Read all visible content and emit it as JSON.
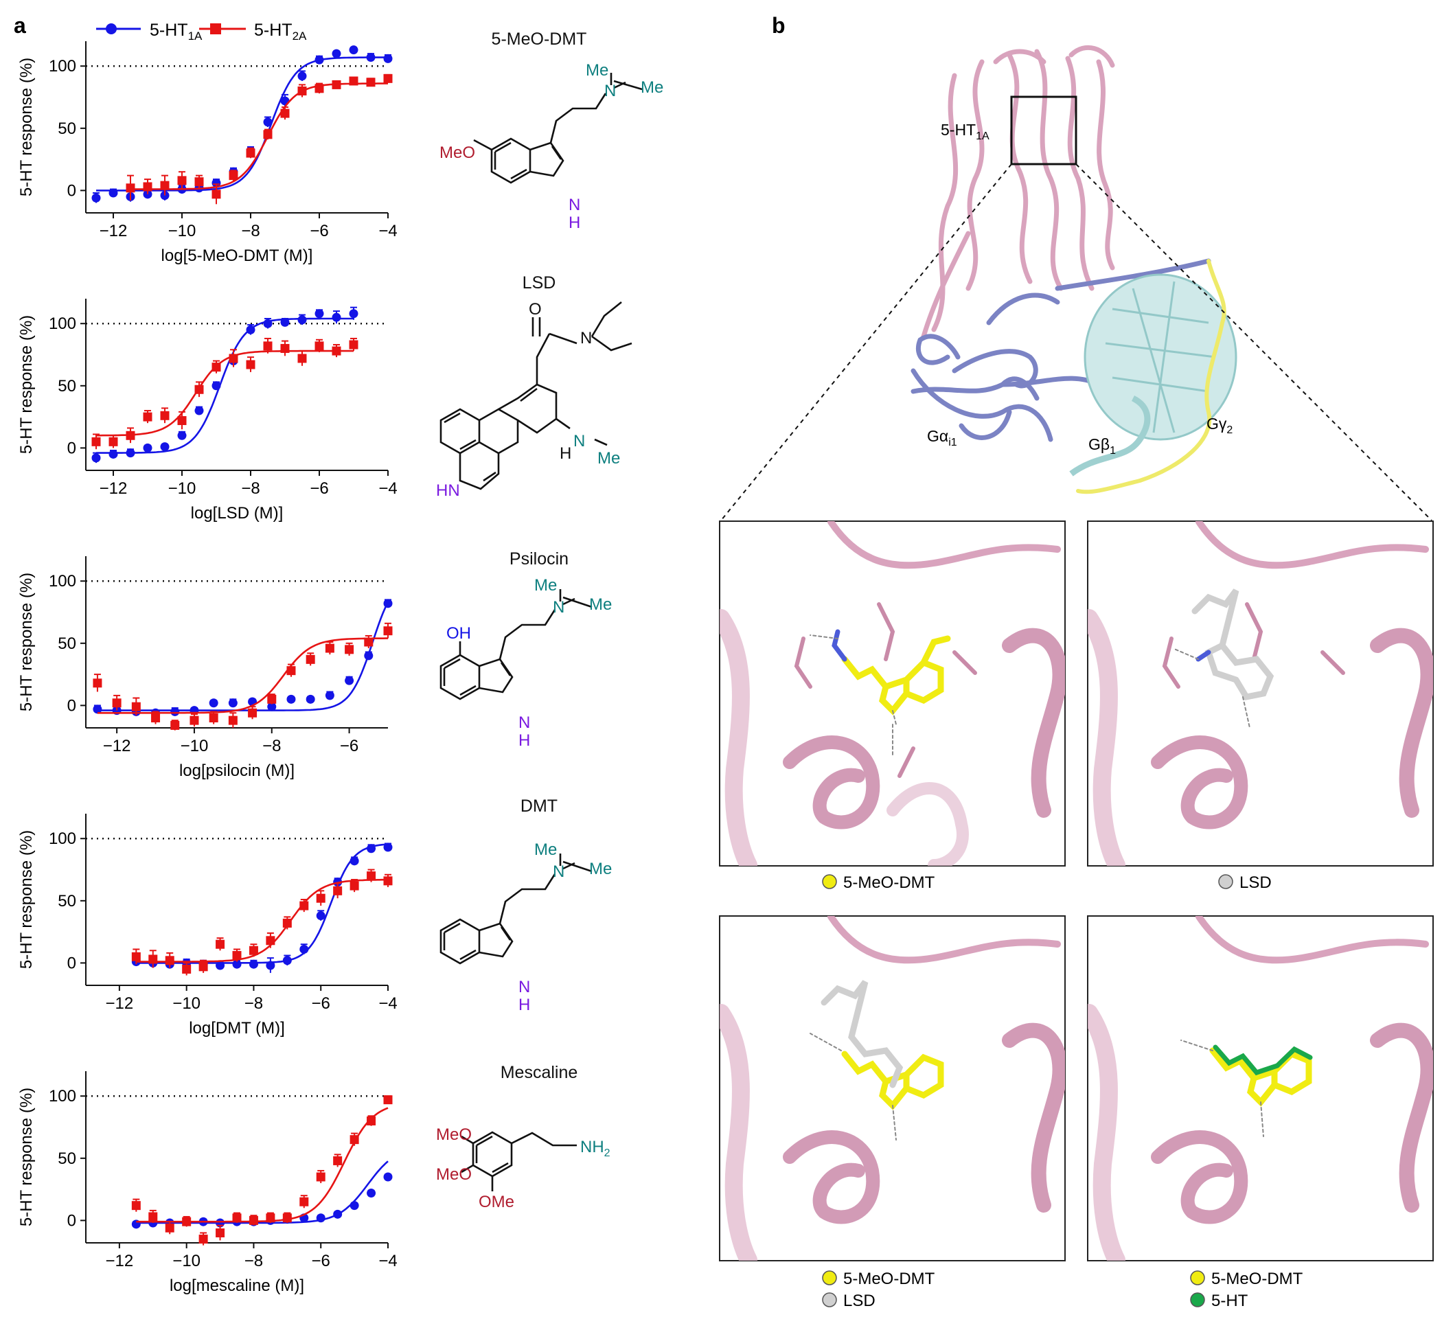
{
  "panel_labels": {
    "a": "a",
    "b": "b"
  },
  "legend": {
    "receptors": [
      {
        "name": "5-HT",
        "sub": "1A",
        "color": "#1414e6",
        "marker": "circle"
      },
      {
        "name": "5-HT",
        "sub": "2A",
        "color": "#e61414",
        "marker": "square"
      }
    ]
  },
  "chart_data": [
    {
      "type": "scatter",
      "ylabel": "5-HT response (%)",
      "xlabel": "log[5-MeO-DMT (M)]",
      "xlim": [
        -12.8,
        -4
      ],
      "ylim": [
        -18,
        120
      ],
      "xticks": [
        -12,
        -10,
        -8,
        -6,
        -4
      ],
      "yticks": [
        0,
        50,
        100
      ],
      "xtick_labels": [
        "−12",
        "−10",
        "−8",
        "−6",
        "−4"
      ],
      "ytick_labels": [
        "0",
        "50",
        "100"
      ],
      "reference_line": 100,
      "series": [
        {
          "x": [
            -12.5,
            -12,
            -11.5,
            -11,
            -10.5,
            -10,
            -9.5,
            -9,
            -8.5,
            -8,
            -7.5,
            -7,
            -6.5,
            -6,
            -5.5,
            -5,
            -4.5,
            -4
          ],
          "y": [
            -6,
            -2,
            -5,
            -3,
            -4,
            1,
            2,
            6,
            15,
            32,
            55,
            72,
            92,
            105,
            110,
            113,
            107,
            106
          ],
          "err": [
            4,
            3,
            4,
            3,
            4,
            3,
            3,
            3,
            3,
            3,
            4,
            5,
            4,
            3,
            2,
            2,
            3,
            3
          ],
          "fit": {
            "bottom": 0,
            "top": 107,
            "ec50": -7.4,
            "hill": 1.2
          }
        },
        {
          "x": [
            -11.5,
            -11,
            -10.5,
            -10,
            -9.5,
            -9,
            -8.5,
            -8,
            -7.5,
            -7,
            -6.5,
            -6,
            -5.5,
            -5,
            -4.5,
            -4
          ],
          "y": [
            2,
            3,
            4,
            8,
            7,
            -3,
            12,
            30,
            45,
            62,
            80,
            82,
            85,
            88,
            87,
            90
          ],
          "err": [
            10,
            6,
            8,
            7,
            5,
            8,
            4,
            4,
            4,
            5,
            5,
            4,
            3,
            3,
            3,
            3
          ],
          "fit": {
            "bottom": 1,
            "top": 86,
            "ec50": -7.5,
            "hill": 1.1
          }
        }
      ]
    },
    {
      "type": "scatter",
      "ylabel": "5-HT response (%)",
      "xlabel": "log[LSD (M)]",
      "xlim": [
        -12.8,
        -4
      ],
      "ylim": [
        -18,
        120
      ],
      "xticks": [
        -12,
        -10,
        -8,
        -6,
        -4
      ],
      "yticks": [
        0,
        50,
        100
      ],
      "xtick_labels": [
        "−12",
        "−10",
        "−8",
        "−6",
        "−4"
      ],
      "ytick_labels": [
        "0",
        "50",
        "100"
      ],
      "reference_line": 100,
      "series": [
        {
          "x": [
            -12.5,
            -12,
            -11.5,
            -11,
            -10.5,
            -10,
            -9.5,
            -9,
            -8.5,
            -8,
            -7.5,
            -7,
            -6.5,
            -6,
            -5.5,
            -5
          ],
          "y": [
            -8,
            -5,
            -4,
            0,
            1,
            10,
            30,
            50,
            70,
            95,
            100,
            101,
            103,
            108,
            105,
            108
          ],
          "err": [
            4,
            3,
            3,
            2,
            2,
            3,
            3,
            3,
            4,
            4,
            4,
            3,
            4,
            3,
            5,
            5
          ],
          "fit": {
            "bottom": -4,
            "top": 104,
            "ec50": -8.9,
            "hill": 1.2
          }
        },
        {
          "x": [
            -12.5,
            -12,
            -11.5,
            -11,
            -10.5,
            -10,
            -9.5,
            -9,
            -8.5,
            -8,
            -7.5,
            -7,
            -6.5,
            -6,
            -5.5,
            -5
          ],
          "y": [
            5,
            5,
            10,
            25,
            26,
            22,
            47,
            65,
            72,
            67,
            82,
            80,
            72,
            82,
            78,
            83
          ],
          "err": [
            6,
            5,
            6,
            5,
            6,
            7,
            6,
            5,
            7,
            6,
            6,
            6,
            6,
            5,
            5,
            5
          ],
          "fit": {
            "bottom": 10,
            "top": 78,
            "ec50": -9.6,
            "hill": 1.1
          }
        }
      ]
    },
    {
      "type": "scatter",
      "ylabel": "5-HT response (%)",
      "xlabel": "log[psilocin (M)]",
      "xlim": [
        -12.8,
        -5
      ],
      "ylim": [
        -18,
        120
      ],
      "xticks": [
        -12,
        -10,
        -8,
        -6
      ],
      "yticks": [
        0,
        50,
        100
      ],
      "xtick_labels": [
        "−12",
        "−10",
        "−8",
        "−6"
      ],
      "ytick_labels": [
        "0",
        "50",
        "100"
      ],
      "reference_line": 100,
      "series": [
        {
          "x": [
            -12.5,
            -12,
            -11.5,
            -11,
            -10.5,
            -10,
            -9.5,
            -9,
            -8.5,
            -8,
            -7.5,
            -7,
            -6.5,
            -6,
            -5.5,
            -5
          ],
          "y": [
            -3,
            -4,
            -5,
            -6,
            -5,
            -4,
            2,
            2,
            3,
            -1,
            5,
            5,
            8,
            20,
            40,
            82
          ],
          "err": [
            3,
            2,
            3,
            2,
            3,
            2,
            2,
            3,
            2,
            2,
            2,
            2,
            3,
            3,
            3,
            3
          ],
          "fit": {
            "bottom": -4,
            "top": 105,
            "ec50": -5.4,
            "hill": 1.5
          }
        },
        {
          "x": [
            -12.5,
            -12,
            -11.5,
            -11,
            -10.5,
            -10,
            -9.5,
            -9,
            -8.5,
            -8,
            -7.5,
            -7,
            -6.5,
            -6,
            -5.5,
            -5
          ],
          "y": [
            18,
            2,
            -1,
            -10,
            -16,
            -12,
            -10,
            -12,
            -6,
            5,
            28,
            37,
            46,
            45,
            51,
            60
          ],
          "err": [
            7,
            6,
            7,
            5,
            4,
            5,
            5,
            6,
            5,
            4,
            5,
            5,
            5,
            5,
            5,
            6
          ],
          "fit": {
            "bottom": -6,
            "top": 54,
            "ec50": -7.7,
            "hill": 1.2
          }
        }
      ]
    },
    {
      "type": "scatter",
      "ylabel": "5-HT response (%)",
      "xlabel": "log[DMT (M)]",
      "xlim": [
        -13,
        -4
      ],
      "ylim": [
        -18,
        120
      ],
      "xticks": [
        -12,
        -10,
        -8,
        -6,
        -4
      ],
      "yticks": [
        0,
        50,
        100
      ],
      "xtick_labels": [
        "−12",
        "−10",
        "−8",
        "−6",
        "−4"
      ],
      "ytick_labels": [
        "0",
        "50",
        "100"
      ],
      "reference_line": 100,
      "series": [
        {
          "x": [
            -11.5,
            -11,
            -10.5,
            -10,
            -9.5,
            -9,
            -8.5,
            -8,
            -7.5,
            -7,
            -6.5,
            -6,
            -5.5,
            -5,
            -4.5,
            -4
          ],
          "y": [
            1,
            0,
            -1,
            0,
            -1,
            -2,
            -1,
            -1,
            -2,
            2,
            11,
            38,
            65,
            82,
            92,
            93
          ],
          "err": [
            3,
            3,
            3,
            3,
            3,
            3,
            3,
            3,
            6,
            4,
            4,
            4,
            3,
            3,
            3,
            3
          ],
          "fit": {
            "bottom": 0,
            "top": 96,
            "ec50": -5.7,
            "hill": 1.3
          }
        },
        {
          "x": [
            -11.5,
            -11,
            -10.5,
            -10,
            -9.5,
            -9,
            -8.5,
            -8,
            -7.5,
            -7,
            -6.5,
            -6,
            -5.5,
            -5,
            -4.5,
            -4
          ],
          "y": [
            5,
            3,
            2,
            -5,
            -3,
            15,
            6,
            10,
            18,
            32,
            46,
            52,
            58,
            62,
            70,
            66
          ],
          "err": [
            6,
            7,
            6,
            5,
            5,
            5,
            5,
            5,
            6,
            5,
            5,
            6,
            6,
            5,
            5,
            5
          ],
          "fit": {
            "bottom": 1,
            "top": 67,
            "ec50": -6.9,
            "hill": 1.0
          }
        }
      ]
    },
    {
      "type": "scatter",
      "ylabel": "5-HT response (%)",
      "xlabel": "log[mescaline (M)]",
      "xlim": [
        -13,
        -4
      ],
      "ylim": [
        -18,
        120
      ],
      "xticks": [
        -12,
        -10,
        -8,
        -6,
        -4
      ],
      "yticks": [
        0,
        50,
        100
      ],
      "xtick_labels": [
        "−12",
        "−10",
        "−8",
        "−6",
        "−4"
      ],
      "ytick_labels": [
        "0",
        "50",
        "100"
      ],
      "reference_line": 100,
      "series": [
        {
          "x": [
            -11.5,
            -11,
            -10.5,
            -10,
            -9.5,
            -9,
            -8.5,
            -8,
            -7.5,
            -7,
            -6.5,
            -6,
            -5.5,
            -5,
            -4.5,
            -4
          ],
          "y": [
            -3,
            -2,
            -2,
            -1,
            -1,
            -2,
            -1,
            -1,
            0,
            1,
            2,
            2,
            5,
            12,
            22,
            35
          ],
          "err": [
            2,
            2,
            2,
            2,
            2,
            2,
            2,
            2,
            2,
            2,
            2,
            2,
            2,
            2,
            2,
            2
          ],
          "fit": {
            "bottom": -2,
            "top": 60,
            "ec50": -4.6,
            "hill": 1.0
          }
        },
        {
          "x": [
            -11.5,
            -11,
            -10.5,
            -10,
            -9.5,
            -9,
            -8.5,
            -8,
            -7.5,
            -7,
            -6.5,
            -6,
            -5.5,
            -5,
            -4.5,
            -4
          ],
          "y": [
            12,
            3,
            -6,
            -1,
            -15,
            -10,
            2,
            0,
            2,
            2,
            15,
            35,
            48,
            65,
            80,
            97
          ],
          "err": [
            5,
            5,
            5,
            4,
            5,
            6,
            4,
            4,
            4,
            4,
            5,
            5,
            5,
            5,
            4,
            3
          ],
          "fit": {
            "bottom": -1,
            "top": 95,
            "ec50": -5.3,
            "hill": 1.0
          }
        }
      ]
    }
  ],
  "compounds": [
    {
      "name": "5-MeO-DMT",
      "labels": {
        "meo": "MeO",
        "me1": "Me",
        "n": "N",
        "me2": "Me",
        "nh_n": "N",
        "nh_h": "H"
      }
    },
    {
      "name": "LSD",
      "labels": {
        "o": "O",
        "n_amide": "N",
        "n_me": "N",
        "me": "Me",
        "h": "H",
        "hn": "HN"
      }
    },
    {
      "name": "Psilocin",
      "labels": {
        "oh": "OH",
        "me1": "Me",
        "n": "N",
        "me2": "Me",
        "nh_n": "N",
        "nh_h": "H"
      }
    },
    {
      "name": "DMT",
      "labels": {
        "me1": "Me",
        "n": "N",
        "me2": "Me",
        "nh_n": "N",
        "nh_h": "H"
      }
    },
    {
      "name": "Mescaline",
      "labels": {
        "meo1": "MeO",
        "meo2": "MeO",
        "ome": "OMe",
        "nh2": "NH",
        "nh2_sub": "2"
      }
    }
  ],
  "structure": {
    "receptor_label": {
      "text": "5-HT",
      "sub": "1A"
    },
    "g_alpha": {
      "text": "Gα",
      "sub": "i1"
    },
    "g_beta": {
      "text": "Gβ",
      "sub": "1"
    },
    "g_gamma": {
      "text": "Gγ",
      "sub": "2"
    },
    "colors": {
      "receptor": "#d9a3bd",
      "g_alpha": "#7b83c4",
      "g_beta": "#b6dcdc",
      "g_gamma": "#eeea6a"
    }
  },
  "binding_panels": [
    {
      "legend": [
        {
          "label": "5-MeO-DMT",
          "color": "#f0ec12"
        }
      ]
    },
    {
      "legend": [
        {
          "label": "LSD",
          "color": "#d0d0d0"
        }
      ]
    },
    {
      "legend": [
        {
          "label": "5-MeO-DMT",
          "color": "#f0ec12"
        },
        {
          "label": "LSD",
          "color": "#d0d0d0"
        }
      ]
    },
    {
      "legend": [
        {
          "label": "5-MeO-DMT",
          "color": "#f0ec12"
        },
        {
          "label": "5-HT",
          "color": "#1aa84a"
        }
      ]
    }
  ]
}
